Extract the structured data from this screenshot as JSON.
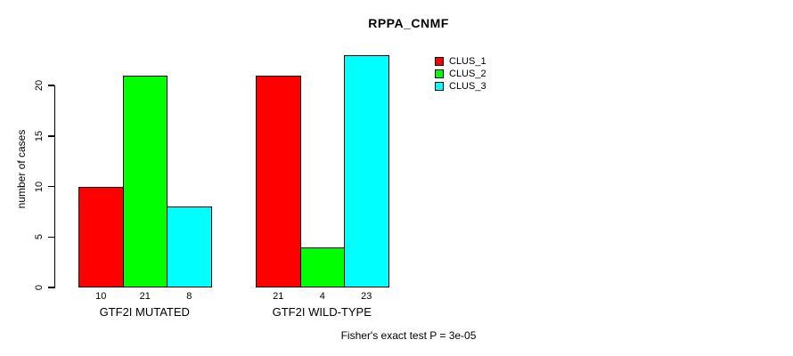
{
  "chart_data": {
    "type": "bar",
    "title": "RPPA_CNMF",
    "ylabel": "number of cases",
    "xlabel": "",
    "categories": [
      "GTF2I MUTATED",
      "GTF2I WILD-TYPE"
    ],
    "series": [
      {
        "name": "CLUS_1",
        "color": "#ff0000",
        "values": [
          10,
          21
        ]
      },
      {
        "name": "CLUS_2",
        "color": "#00ff00",
        "values": [
          21,
          4
        ]
      },
      {
        "name": "CLUS_3",
        "color": "#00ffff",
        "values": [
          8,
          23
        ]
      }
    ],
    "bar_value_labels": [
      [
        "10",
        "21",
        "8"
      ],
      [
        "21",
        "4",
        "23"
      ]
    ],
    "yticks": [
      0,
      5,
      10,
      15,
      20
    ],
    "ylim": [
      0,
      23
    ],
    "grid": false,
    "legend_position": "top-right",
    "footnote": "Fisher's exact test P = 3e-05"
  }
}
